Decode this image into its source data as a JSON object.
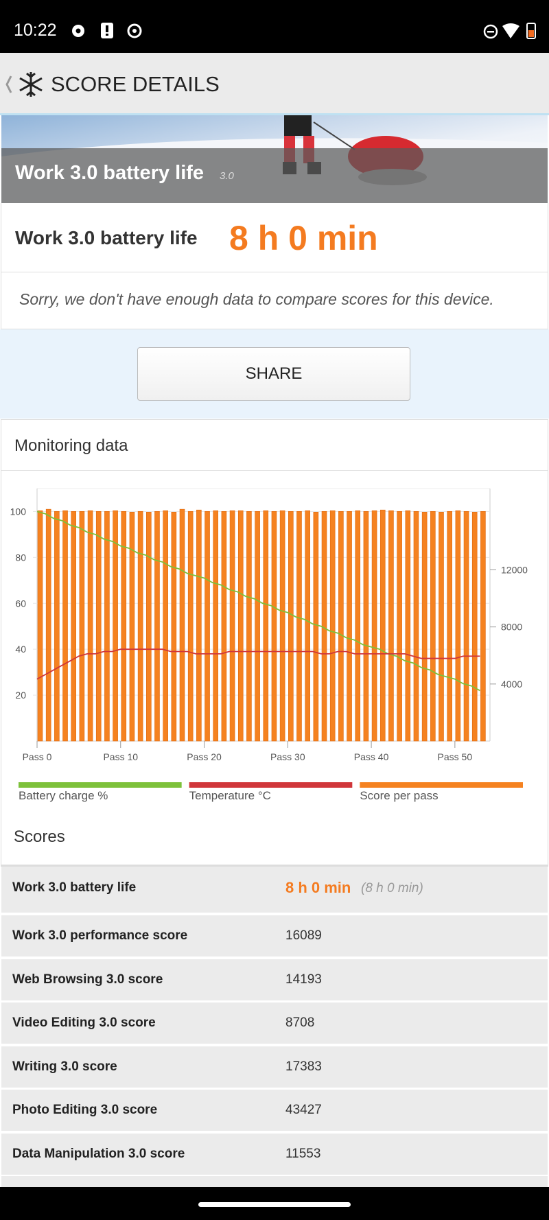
{
  "status_bar": {
    "time": "10:22"
  },
  "header": {
    "title": "SCORE DETAILS"
  },
  "banner": {
    "title": "Work 3.0 battery life",
    "version": "3.0"
  },
  "result": {
    "label": "Work 3.0 battery life",
    "value": "8 h 0 min"
  },
  "note": "Sorry, we don't have enough data to compare scores for this device.",
  "share_button": "SHARE",
  "monitoring": {
    "title": "Monitoring data"
  },
  "chart_data": {
    "type": "combo",
    "x": [
      0,
      1,
      2,
      3,
      4,
      5,
      6,
      7,
      8,
      9,
      10,
      11,
      12,
      13,
      14,
      15,
      16,
      17,
      18,
      19,
      20,
      21,
      22,
      23,
      24,
      25,
      26,
      27,
      28,
      29,
      30,
      31,
      32,
      33,
      34,
      35,
      36,
      37,
      38,
      39,
      40,
      41,
      42,
      43,
      44,
      45,
      46,
      47,
      48,
      49,
      50,
      51,
      52,
      53
    ],
    "xlim": [
      0,
      54.2
    ],
    "xticks": [
      {
        "value": 0,
        "label": "Pass 0"
      },
      {
        "value": 10,
        "label": "Pass 10"
      },
      {
        "value": 20,
        "label": "Pass 20"
      },
      {
        "value": 30,
        "label": "Pass 30"
      },
      {
        "value": 40,
        "label": "Pass 40"
      },
      {
        "value": 50,
        "label": "Pass 50"
      }
    ],
    "ylim": [
      0,
      110
    ],
    "yticks": [
      20,
      40,
      60,
      80,
      100
    ],
    "y2lim": [
      0,
      17700
    ],
    "y2ticks": [
      4000,
      8000,
      12000
    ],
    "grid": true,
    "series": [
      {
        "name": "Battery charge %",
        "color": "#7dc13a",
        "kind": "line",
        "values": [
          100,
          99,
          97,
          96,
          94,
          93,
          91,
          90,
          88,
          87,
          85,
          84,
          82,
          81,
          79,
          78,
          76,
          75,
          73,
          72,
          71,
          69,
          68,
          66,
          65,
          63,
          62,
          60,
          59,
          57,
          56,
          54,
          53,
          51,
          50,
          48,
          47,
          45,
          44,
          42,
          41,
          40,
          38,
          37,
          35,
          34,
          32,
          31,
          29,
          28,
          27,
          25,
          24,
          22
        ]
      },
      {
        "name": "Temperature °C",
        "color": "#d0363a",
        "kind": "line",
        "values": [
          27,
          29,
          31,
          33,
          35,
          37,
          38,
          38,
          39,
          39,
          40,
          40,
          40,
          40,
          40,
          40,
          39,
          39,
          39,
          38,
          38,
          38,
          38,
          39,
          39,
          39,
          39,
          39,
          39,
          39,
          39,
          39,
          39,
          39,
          38,
          38,
          39,
          39,
          38,
          38,
          38,
          38,
          38,
          38,
          38,
          37,
          36,
          36,
          36,
          36,
          36,
          37,
          37,
          37
        ]
      },
      {
        "name": "Score per pass",
        "color": "#f58220",
        "kind": "bar",
        "axis": "y2",
        "values": [
          16150,
          16250,
          16100,
          16150,
          16100,
          16100,
          16150,
          16100,
          16100,
          16150,
          16100,
          16050,
          16100,
          16050,
          16100,
          16150,
          16050,
          16250,
          16100,
          16200,
          16100,
          16150,
          16100,
          16150,
          16150,
          16100,
          16100,
          16150,
          16100,
          16150,
          16100,
          16100,
          16150,
          16050,
          16100,
          16150,
          16100,
          16100,
          16150,
          16100,
          16150,
          16200,
          16150,
          16100,
          16150,
          16100,
          16050,
          16100,
          16050,
          16100,
          16150,
          16100,
          16050,
          16100
        ]
      }
    ]
  },
  "scores": {
    "title": "Scores",
    "rows": [
      {
        "label": "Work 3.0 battery life",
        "value": "8 h 0 min",
        "detail": "(8 h 0 min)"
      },
      {
        "label": "Work 3.0 performance score",
        "value": 16089
      },
      {
        "label": "Web Browsing 3.0 score",
        "value": 14193
      },
      {
        "label": "Video Editing 3.0 score",
        "value": 8708
      },
      {
        "label": "Writing 3.0 score",
        "value": 17383
      },
      {
        "label": "Photo Editing 3.0 score",
        "value": 43427
      },
      {
        "label": "Data Manipulation 3.0 score",
        "value": 11553
      }
    ]
  }
}
